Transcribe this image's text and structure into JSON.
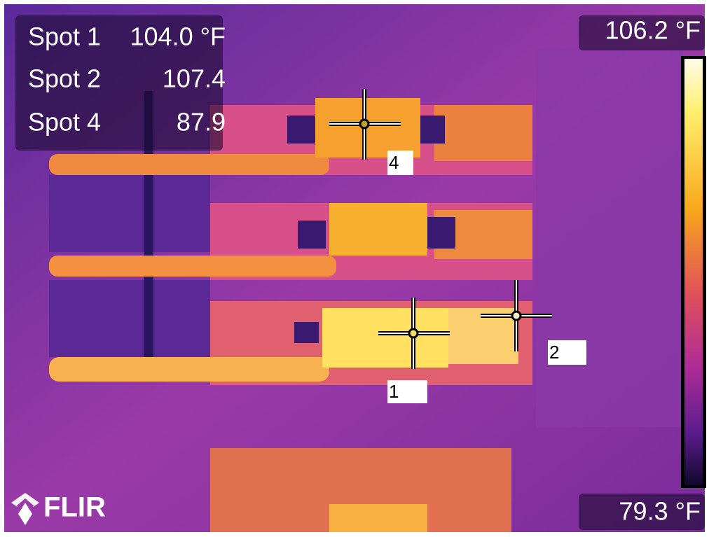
{
  "spots": [
    {
      "label": "Spot 1",
      "value": "104.0 °F"
    },
    {
      "label": "Spot 2",
      "value": "107.4"
    },
    {
      "label": "Spot 4",
      "value": "87.9"
    }
  ],
  "scale": {
    "max": "106.2 °F",
    "min": "79.3 °F"
  },
  "markers": [
    "4",
    "2",
    "1"
  ],
  "logo": "FLIR"
}
